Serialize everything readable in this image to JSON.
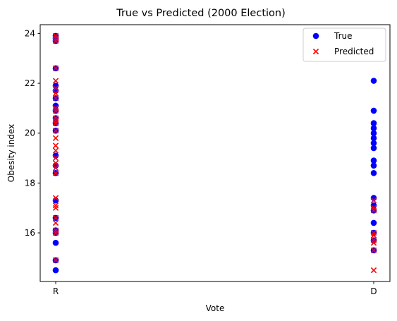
{
  "chart_data": {
    "type": "scatter",
    "title": "True vs Predicted (2000 Election)",
    "xlabel": "Vote",
    "ylabel": "Obesity index",
    "categories": [
      "R",
      "D"
    ],
    "ylim": [
      14.05,
      24.35
    ],
    "yticks": [
      16,
      18,
      20,
      22,
      24
    ],
    "grid": false,
    "legend": "top-right",
    "series": [
      {
        "name": "True",
        "marker": "circle",
        "color": "#0000ff",
        "points": [
          {
            "x": "R",
            "y": 23.9
          },
          {
            "x": "R",
            "y": 23.8
          },
          {
            "x": "R",
            "y": 23.7
          },
          {
            "x": "R",
            "y": 22.6
          },
          {
            "x": "R",
            "y": 21.9
          },
          {
            "x": "R",
            "y": 21.7
          },
          {
            "x": "R",
            "y": 21.4
          },
          {
            "x": "R",
            "y": 21.1
          },
          {
            "x": "R",
            "y": 20.9
          },
          {
            "x": "R",
            "y": 20.6
          },
          {
            "x": "R",
            "y": 20.4
          },
          {
            "x": "R",
            "y": 20.1
          },
          {
            "x": "R",
            "y": 19.1
          },
          {
            "x": "R",
            "y": 18.7
          },
          {
            "x": "R",
            "y": 18.4
          },
          {
            "x": "R",
            "y": 17.3
          },
          {
            "x": "R",
            "y": 16.6
          },
          {
            "x": "R",
            "y": 16.1
          },
          {
            "x": "R",
            "y": 16.0
          },
          {
            "x": "R",
            "y": 15.6
          },
          {
            "x": "R",
            "y": 14.9
          },
          {
            "x": "R",
            "y": 14.5
          },
          {
            "x": "D",
            "y": 22.1
          },
          {
            "x": "D",
            "y": 20.9
          },
          {
            "x": "D",
            "y": 20.4
          },
          {
            "x": "D",
            "y": 20.2
          },
          {
            "x": "D",
            "y": 20.0
          },
          {
            "x": "D",
            "y": 19.8
          },
          {
            "x": "D",
            "y": 19.6
          },
          {
            "x": "D",
            "y": 19.4
          },
          {
            "x": "D",
            "y": 18.9
          },
          {
            "x": "D",
            "y": 18.7
          },
          {
            "x": "D",
            "y": 18.4
          },
          {
            "x": "D",
            "y": 17.4
          },
          {
            "x": "D",
            "y": 17.1
          },
          {
            "x": "D",
            "y": 16.9
          },
          {
            "x": "D",
            "y": 16.4
          },
          {
            "x": "D",
            "y": 16.0
          },
          {
            "x": "D",
            "y": 15.7
          },
          {
            "x": "D",
            "y": 15.3
          }
        ]
      },
      {
        "name": "Predicted",
        "marker": "x",
        "color": "#ff0000",
        "points": [
          {
            "x": "R",
            "y": 23.9
          },
          {
            "x": "R",
            "y": 23.8
          },
          {
            "x": "R",
            "y": 23.7
          },
          {
            "x": "R",
            "y": 22.6
          },
          {
            "x": "R",
            "y": 22.1
          },
          {
            "x": "R",
            "y": 21.8
          },
          {
            "x": "R",
            "y": 21.6
          },
          {
            "x": "R",
            "y": 21.4
          },
          {
            "x": "R",
            "y": 21.0
          },
          {
            "x": "R",
            "y": 20.9
          },
          {
            "x": "R",
            "y": 20.6
          },
          {
            "x": "R",
            "y": 20.5
          },
          {
            "x": "R",
            "y": 20.4
          },
          {
            "x": "R",
            "y": 20.1
          },
          {
            "x": "R",
            "y": 19.8
          },
          {
            "x": "R",
            "y": 19.5
          },
          {
            "x": "R",
            "y": 19.3
          },
          {
            "x": "R",
            "y": 19.0
          },
          {
            "x": "R",
            "y": 18.8
          },
          {
            "x": "R",
            "y": 18.6
          },
          {
            "x": "R",
            "y": 18.4
          },
          {
            "x": "R",
            "y": 17.4
          },
          {
            "x": "R",
            "y": 17.1
          },
          {
            "x": "R",
            "y": 17.0
          },
          {
            "x": "R",
            "y": 16.6
          },
          {
            "x": "R",
            "y": 16.4
          },
          {
            "x": "R",
            "y": 16.1
          },
          {
            "x": "R",
            "y": 16.0
          },
          {
            "x": "R",
            "y": 14.9
          },
          {
            "x": "D",
            "y": 17.3
          },
          {
            "x": "D",
            "y": 17.0
          },
          {
            "x": "D",
            "y": 16.9
          },
          {
            "x": "D",
            "y": 16.0
          },
          {
            "x": "D",
            "y": 15.9
          },
          {
            "x": "D",
            "y": 15.7
          },
          {
            "x": "D",
            "y": 15.6
          },
          {
            "x": "D",
            "y": 15.3
          },
          {
            "x": "D",
            "y": 14.5
          }
        ]
      }
    ]
  }
}
